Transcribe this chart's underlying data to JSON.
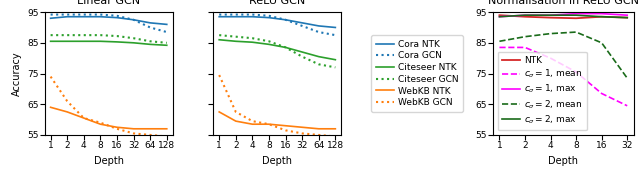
{
  "fig_width": 6.4,
  "fig_height": 1.73,
  "dpi": 100,
  "depth_ticks_12": [
    1,
    2,
    4,
    8,
    16,
    32,
    64,
    128
  ],
  "depth_ticks_3": [
    1,
    2,
    4,
    8,
    16,
    32
  ],
  "linear_gcn": {
    "title": "Linear GCN",
    "cora_ntk": [
      93.0,
      93.5,
      93.5,
      93.5,
      93.2,
      92.5,
      91.5,
      91.0
    ],
    "cora_gcn": [
      94.2,
      94.2,
      94.2,
      94.2,
      93.8,
      92.5,
      90.0,
      88.5
    ],
    "citeseer_ntk": [
      85.5,
      85.5,
      85.5,
      85.5,
      85.3,
      85.0,
      84.5,
      84.2
    ],
    "citeseer_gcn": [
      87.5,
      87.5,
      87.5,
      87.5,
      87.2,
      86.5,
      85.5,
      85.0
    ],
    "webkb_ntk": [
      64.0,
      62.5,
      60.5,
      58.5,
      57.5,
      57.0,
      57.0,
      57.0
    ],
    "webkb_gcn": [
      74.0,
      66.0,
      60.5,
      59.0,
      57.0,
      55.5,
      55.0,
      54.5
    ]
  },
  "relu_gcn": {
    "title": "ReLU GCN",
    "cora_ntk": [
      93.5,
      93.5,
      93.5,
      93.2,
      92.5,
      91.5,
      90.5,
      90.0
    ],
    "cora_gcn": [
      94.2,
      94.2,
      94.2,
      93.8,
      92.5,
      90.5,
      88.5,
      87.5
    ],
    "citeseer_ntk": [
      86.0,
      85.5,
      85.2,
      84.5,
      83.5,
      82.0,
      80.5,
      79.5
    ],
    "citeseer_gcn": [
      87.5,
      87.0,
      86.5,
      85.5,
      83.5,
      80.5,
      78.0,
      77.0
    ],
    "webkb_ntk": [
      62.5,
      59.5,
      58.5,
      58.5,
      58.0,
      57.5,
      57.0,
      57.0
    ],
    "webkb_gcn": [
      74.5,
      62.5,
      59.5,
      58.5,
      56.5,
      55.5,
      55.0,
      54.5
    ]
  },
  "norm_relu": {
    "title": "Normalisation in ReLU GCN",
    "ntk": [
      94.0,
      93.5,
      93.2,
      93.0,
      93.5,
      93.2
    ],
    "c0_1_mean": [
      83.5,
      83.5,
      80.0,
      75.5,
      68.5,
      64.5
    ],
    "c0_1_max": [
      93.5,
      94.0,
      94.0,
      94.5,
      94.5,
      94.0
    ],
    "c0_2_mean": [
      85.5,
      87.0,
      88.0,
      88.5,
      85.0,
      73.5
    ],
    "c0_2_max": [
      93.5,
      94.0,
      94.0,
      94.0,
      93.5,
      93.2
    ]
  },
  "colors": {
    "blue": "#1f77b4",
    "green": "#2ca02c",
    "orange": "#ff7f0e",
    "red": "#d62728",
    "magenta": "#ff00ff",
    "dark_green": "#1a6b1a"
  },
  "ylim": [
    55,
    95
  ],
  "yticks": [
    55,
    65,
    75,
    85,
    95
  ],
  "legend1_labels": [
    "Cora NTK",
    "Cora GCN",
    "Citeseer NTK",
    "Citeseer GCN",
    "WebKB NTK",
    "WebKB GCN"
  ],
  "legend2_labels": [
    "NTK",
    "$c_\\sigma = 1$, mean",
    "$c_\\sigma = 1$, max",
    "$c_\\sigma = 2$, mean",
    "$c_\\sigma = 2$, max"
  ]
}
